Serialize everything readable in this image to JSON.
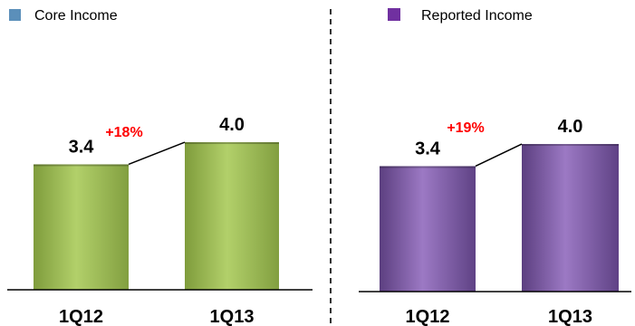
{
  "colors": {
    "core": "#9cba52",
    "core_legend": "#5b8fba",
    "reported": "#7d5aa3",
    "reported_legend": "#7030a0",
    "growth": "#ff0000",
    "divider": "#333333"
  },
  "chart_data": [
    {
      "type": "bar",
      "legend": "Core Income",
      "categories": [
        "1Q12",
        "1Q13"
      ],
      "values": [
        3.4,
        4.0
      ],
      "value_labels": [
        "3.4",
        "4.0"
      ],
      "growth_label": "+18%",
      "ylim": [
        0,
        5.4
      ]
    },
    {
      "type": "bar",
      "legend": "Reported Income",
      "categories": [
        "1Q12",
        "1Q13"
      ],
      "values": [
        3.4,
        4.0
      ],
      "value_labels": [
        "3.4",
        "4.0"
      ],
      "growth_label": "+19%",
      "ylim": [
        0,
        5.4
      ]
    }
  ]
}
